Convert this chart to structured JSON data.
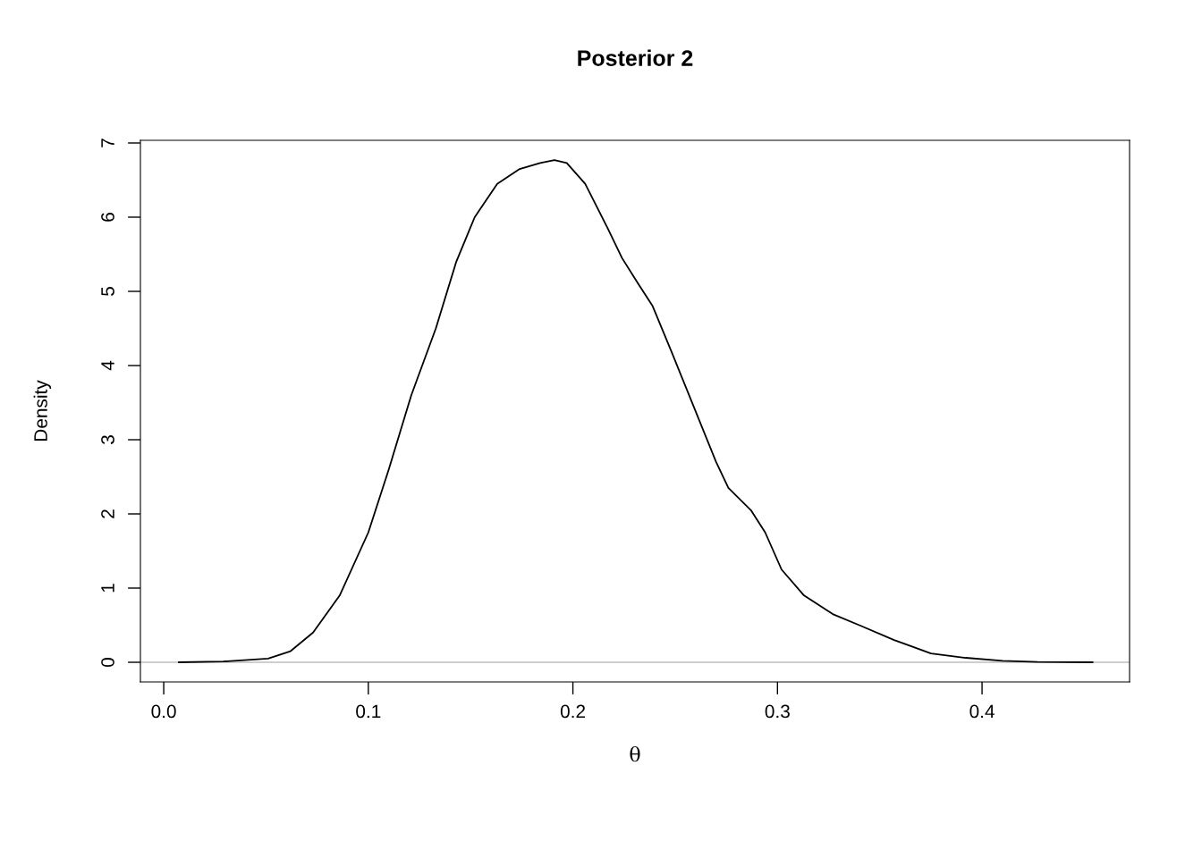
{
  "chart_data": {
    "type": "line",
    "title": "Posterior 2",
    "xlabel": "θ",
    "ylabel": "Density",
    "x": [
      0.0074,
      0.029,
      0.051,
      0.062,
      0.073,
      0.086,
      0.1,
      0.11,
      0.121,
      0.133,
      0.143,
      0.152,
      0.163,
      0.174,
      0.184,
      0.191,
      0.197,
      0.206,
      0.217,
      0.224,
      0.232,
      0.239,
      0.248,
      0.259,
      0.27,
      0.276,
      0.287,
      0.294,
      0.302,
      0.313,
      0.327,
      0.34,
      0.357,
      0.375,
      0.392,
      0.41,
      0.427,
      0.454
    ],
    "series": [
      {
        "color": "#000000",
        "values": [
          0,
          0.01,
          0.05,
          0.15,
          0.4,
          0.9,
          1.75,
          2.6,
          3.6,
          4.5,
          5.4,
          6.0,
          6.45,
          6.65,
          6.73,
          6.77,
          6.73,
          6.45,
          5.85,
          5.45,
          5.1,
          4.8,
          4.2,
          3.45,
          2.7,
          2.35,
          2.05,
          1.75,
          1.25,
          0.9,
          0.65,
          0.5,
          0.3,
          0.12,
          0.06,
          0.02,
          0.005,
          0
        ]
      }
    ],
    "xlim": [
      -0.0114,
      0.4721
    ],
    "ylim": [
      -0.265,
      7.036
    ],
    "xticks": [
      {
        "value": 0,
        "label": "0.0"
      },
      0.1,
      0.2,
      0.3,
      0.4
    ],
    "yticks": [
      0,
      1,
      2,
      3,
      4,
      5,
      6,
      7
    ],
    "ref_lines": [
      {
        "axis": "y",
        "value": 0,
        "color": "#bebebe"
      }
    ],
    "grid": false,
    "legend": false,
    "marker": "none",
    "line_style": "solid"
  }
}
